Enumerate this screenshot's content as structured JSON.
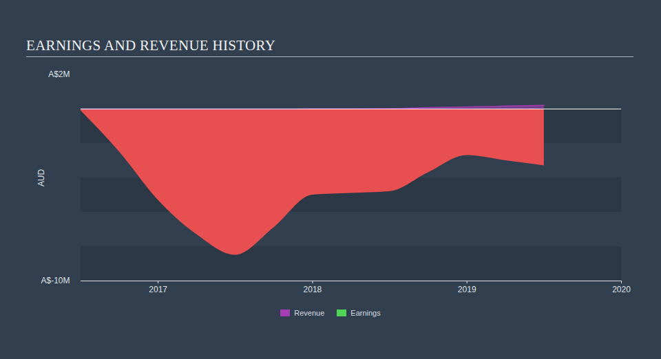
{
  "chart_data": {
    "type": "area",
    "title": "EARNINGS AND REVENUE HISTORY",
    "y_label": "AUD",
    "x": [
      2016.5,
      2016.75,
      2017.0,
      2017.25,
      2017.5,
      2017.75,
      2018.0,
      2018.25,
      2018.5,
      2018.75,
      2019.0,
      2019.25,
      2019.5
    ],
    "series": [
      {
        "name": "Revenue",
        "color": "#a53db5",
        "values": [
          0.0,
          0.0,
          0.0,
          0.0,
          0.0,
          0.0,
          0.01,
          0.01,
          0.02,
          0.08,
          0.12,
          0.17,
          0.21
        ]
      },
      {
        "name": "Earnings",
        "color": "#4fd553",
        "values": [
          -0.1,
          -2.5,
          -5.3,
          -7.3,
          -8.5,
          -6.9,
          -5.0,
          -4.9,
          -4.8,
          -3.7,
          -2.7,
          -3.0,
          -3.3
        ]
      }
    ],
    "xlim": [
      2016.5,
      2020
    ],
    "xticks": [
      2017,
      2018,
      2019,
      2020
    ],
    "ylim": [
      -10,
      2
    ],
    "yticks": [
      {
        "value": -10,
        "label": "A$-10M"
      },
      {
        "value": 2,
        "label": "A$2M"
      }
    ],
    "legend": "bottom"
  }
}
